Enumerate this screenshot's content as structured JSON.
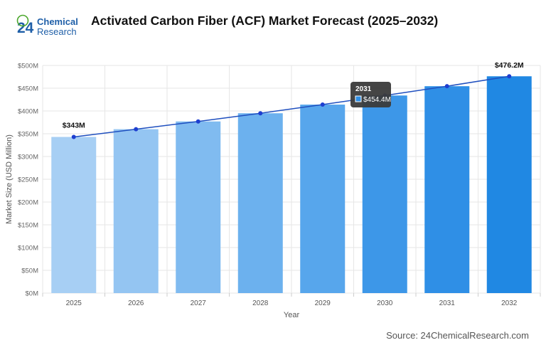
{
  "header": {
    "title": "Activated Carbon Fiber (ACF) Market Forecast (2025–2032)",
    "logo": {
      "number": "24",
      "line1": "Chemical",
      "line2": "Research"
    }
  },
  "footer": {
    "source": "Source: 24ChemicalResearch.com"
  },
  "tooltip": {
    "title": "2031",
    "value": "$454.4M"
  },
  "colors": {
    "bars": [
      "#a7cff4",
      "#94c5f2",
      "#80bbf0",
      "#6cb1ee",
      "#57a6ec",
      "#3d97e8",
      "#2f8fe6",
      "#2088e3"
    ],
    "line": "#1f4fbf",
    "point": "#1e3fd0",
    "grid": "#e6e6e6",
    "logo_blue": "#1f5fa8",
    "logo_green": "#4da82e"
  },
  "chart_data": {
    "type": "bar",
    "categories": [
      "2025",
      "2026",
      "2027",
      "2028",
      "2029",
      "2030",
      "2031",
      "2032"
    ],
    "values": [
      343,
      360,
      377,
      395,
      414,
      434,
      454.4,
      476.2
    ],
    "overlay_line": [
      343,
      360,
      377,
      395,
      414,
      434,
      454.4,
      476.2
    ],
    "xlabel": "Year",
    "ylabel": "Market Size (USD Million)",
    "ylim": [
      0,
      500
    ],
    "yticks": [
      "$0M",
      "$50M",
      "$100M",
      "$150M",
      "$200M",
      "$250M",
      "$300M",
      "$350M",
      "$400M",
      "$450M",
      "$500M"
    ],
    "annotations": [
      "$343M",
      "$476.2M"
    ],
    "grid": true
  }
}
